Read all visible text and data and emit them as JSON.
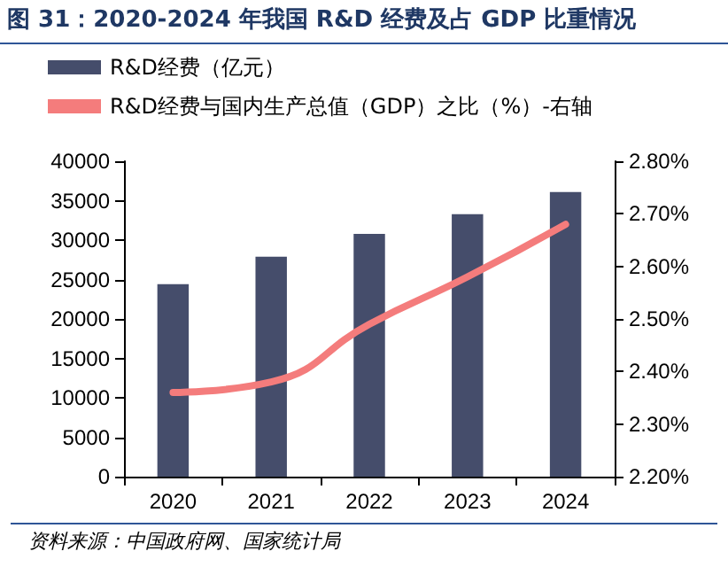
{
  "chart_data": {
    "type": "bar",
    "title": "图 31：2020-2024 年我国 R&D 经费及占 GDP 比重情况",
    "categories": [
      "2020",
      "2021",
      "2022",
      "2023",
      "2024"
    ],
    "series": [
      {
        "name": "R&D经费（亿元）",
        "color": "#454d6b",
        "values": [
          24400,
          27900,
          30800,
          33300,
          36100
        ]
      },
      {
        "name": "R&D经费与国内生产总值（GDP）之比（%）-右轴",
        "type": "line",
        "axis": "y2",
        "color": "#f47c7c",
        "marker": "none",
        "values": [
          2.36,
          2.38,
          2.49,
          2.58,
          2.68
        ]
      }
    ],
    "ylim": [
      0,
      40000
    ],
    "yticks": [
      0,
      5000,
      10000,
      15000,
      20000,
      25000,
      30000,
      35000,
      40000
    ],
    "y2lim": [
      2.2,
      2.8
    ],
    "y2ticks": [
      {
        "value": 2.2,
        "label": "2.20%"
      },
      {
        "value": 2.3,
        "label": "2.30%"
      },
      {
        "value": 2.4,
        "label": "2.40%"
      },
      {
        "value": 2.5,
        "label": "2.50%"
      },
      {
        "value": 2.6,
        "label": "2.60%"
      },
      {
        "value": 2.7,
        "label": "2.70%"
      },
      {
        "value": 2.8,
        "label": "2.80%"
      }
    ],
    "grid": false,
    "legend": "top left",
    "annotations": [
      "资料来源：中国政府网、国家统计局"
    ]
  }
}
